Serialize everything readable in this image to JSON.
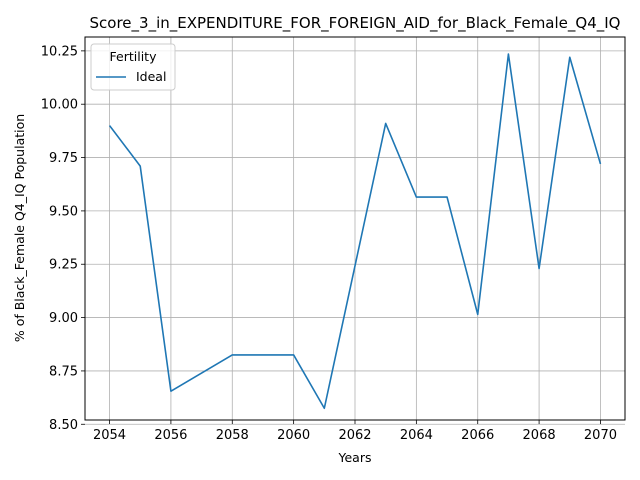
{
  "chart_data": {
    "type": "line",
    "title": "Score_3_in_EXPENDITURE_FOR_FOREIGN_AID_for_Black_Female_Q4_IQ",
    "xlabel": "Years",
    "ylabel": "% of Black_Female Q4_IQ Population",
    "x": [
      2054,
      2055,
      2056,
      2058,
      2060,
      2061,
      2063,
      2064,
      2065,
      2066,
      2067,
      2068,
      2069,
      2070
    ],
    "series": [
      {
        "name": "Ideal",
        "color": "#1f77b4",
        "values": [
          9.9,
          9.71,
          8.655,
          8.825,
          8.825,
          8.575,
          9.91,
          9.565,
          9.565,
          9.015,
          10.235,
          9.23,
          10.22,
          9.72
        ]
      }
    ],
    "legend_title": "Fertility",
    "legend_position": "top-left",
    "xlim": [
      2053.2,
      2070.8
    ],
    "ylim": [
      8.52,
      10.315
    ],
    "xticks": [
      2054,
      2056,
      2058,
      2060,
      2062,
      2064,
      2066,
      2068,
      2070
    ],
    "yticks": [
      "8.50",
      "8.75",
      "9.00",
      "9.25",
      "9.50",
      "9.75",
      "10.00",
      "10.25"
    ],
    "grid": true
  }
}
